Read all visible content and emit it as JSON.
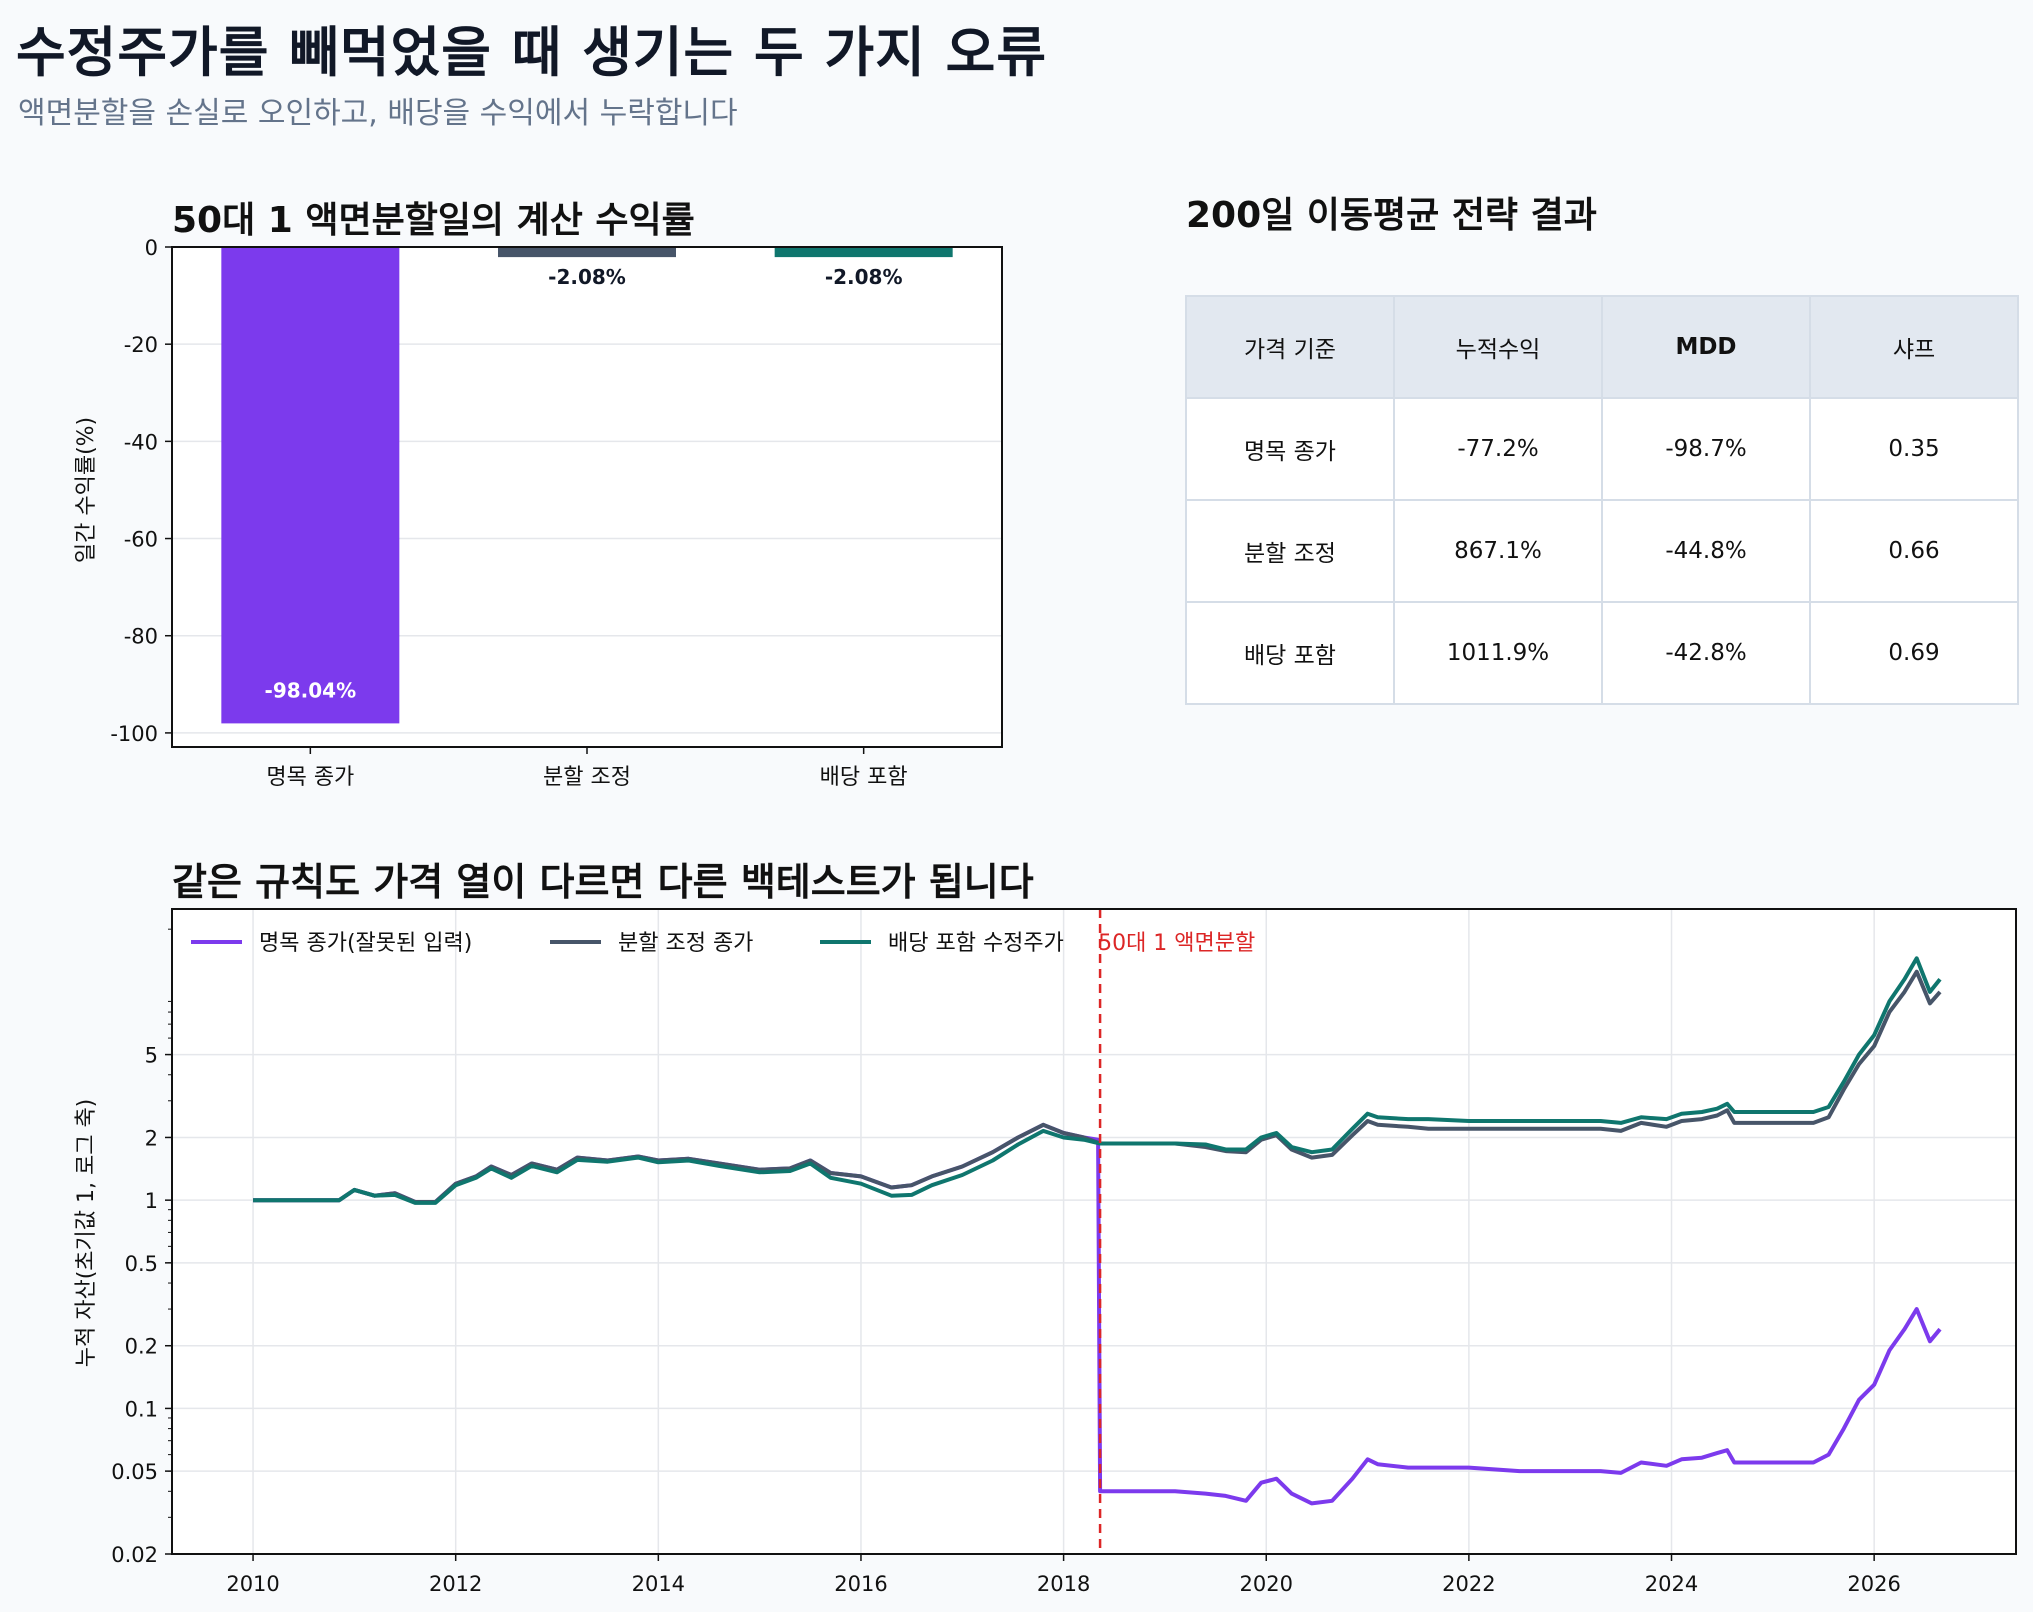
{
  "header": {
    "title": "수정주가를 빼먹었을 때 생기는 두 가지 오류",
    "subtitle": "액면분할을 손실로 오인하고, 배당을 수익에서 누락합니다"
  },
  "table": {
    "title": "200일 이동평균 전략 결과",
    "columns": [
      "가격 기준",
      "누적수익",
      "MDD",
      "샤프"
    ],
    "rows": [
      [
        "명목 종가",
        "-77.2%",
        "-98.7%",
        "0.35"
      ],
      [
        "분할 조정",
        "867.1%",
        "-44.8%",
        "0.66"
      ],
      [
        "배당 포함",
        "1011.9%",
        "-42.8%",
        "0.69"
      ]
    ]
  },
  "chart_data": [
    {
      "type": "bar",
      "title": "50대 1 액면분할일의 계산 수익률",
      "xlabel": "",
      "ylabel": "일간 수익률(%)",
      "categories": [
        "명목 종가",
        "분할 조정",
        "배당 포함"
      ],
      "values": [
        -98.04,
        -2.08,
        -2.08
      ],
      "value_labels": [
        "-98.04%",
        "-2.08%",
        "-2.08%"
      ],
      "colors": [
        "#7c3aed",
        "#475569",
        "#0f766e"
      ],
      "ylim": [
        -102.9,
        0
      ],
      "yticks": [
        0,
        -20,
        -40,
        -60,
        -80,
        -100
      ],
      "grid": true
    },
    {
      "type": "line",
      "title": "같은 규칙도 가격 열이 다르면 다른 백테스트가 됩니다",
      "xlabel": "",
      "ylabel": "누적 자산(초기값 1, 로그 축)",
      "y_scale": "log",
      "xlim": [
        2009.2,
        2027.4
      ],
      "ylim": [
        0.02,
        25
      ],
      "xticks": [
        2010,
        2012,
        2014,
        2016,
        2018,
        2020,
        2022,
        2024,
        2026
      ],
      "yticks": [
        0.02,
        0.05,
        0.1,
        0.2,
        0.5,
        1,
        2,
        5
      ],
      "grid": true,
      "legend_position": "top-left",
      "annotation": {
        "x": 2018.36,
        "label": "50대 1 액면분할",
        "color": "#dc2626"
      },
      "series": [
        {
          "name": "명목 종가(잘못된 입력)",
          "color": "#7c3aed",
          "points": [
            [
              2010.0,
              1.0
            ],
            [
              2010.85,
              1.0
            ],
            [
              2011.0,
              1.12
            ],
            [
              2011.2,
              1.05
            ],
            [
              2011.4,
              1.08
            ],
            [
              2011.6,
              0.98
            ],
            [
              2011.8,
              0.98
            ],
            [
              2012.0,
              1.2
            ],
            [
              2012.2,
              1.3
            ],
            [
              2012.35,
              1.45
            ],
            [
              2012.55,
              1.32
            ],
            [
              2012.75,
              1.5
            ],
            [
              2013.0,
              1.4
            ],
            [
              2013.2,
              1.6
            ],
            [
              2013.5,
              1.55
            ],
            [
              2013.8,
              1.62
            ],
            [
              2014.0,
              1.55
            ],
            [
              2014.3,
              1.58
            ],
            [
              2014.6,
              1.5
            ],
            [
              2015.0,
              1.4
            ],
            [
              2015.3,
              1.42
            ],
            [
              2015.5,
              1.55
            ],
            [
              2015.7,
              1.35
            ],
            [
              2016.0,
              1.3
            ],
            [
              2016.3,
              1.15
            ],
            [
              2016.5,
              1.18
            ],
            [
              2016.7,
              1.3
            ],
            [
              2017.0,
              1.45
            ],
            [
              2017.3,
              1.7
            ],
            [
              2017.55,
              2.0
            ],
            [
              2017.8,
              2.3
            ],
            [
              2018.0,
              2.1
            ],
            [
              2018.2,
              2.0
            ],
            [
              2018.34,
              1.95
            ],
            [
              2018.36,
              0.04
            ],
            [
              2019.1,
              0.04
            ],
            [
              2019.4,
              0.039
            ],
            [
              2019.6,
              0.038
            ],
            [
              2019.8,
              0.036
            ],
            [
              2019.95,
              0.044
            ],
            [
              2020.1,
              0.046
            ],
            [
              2020.25,
              0.039
            ],
            [
              2020.45,
              0.035
            ],
            [
              2020.65,
              0.036
            ],
            [
              2020.85,
              0.046
            ],
            [
              2021.0,
              0.057
            ],
            [
              2021.1,
              0.054
            ],
            [
              2021.4,
              0.052
            ],
            [
              2021.6,
              0.052
            ],
            [
              2022.0,
              0.052
            ],
            [
              2022.5,
              0.05
            ],
            [
              2023.0,
              0.05
            ],
            [
              2023.3,
              0.05
            ],
            [
              2023.5,
              0.049
            ],
            [
              2023.7,
              0.055
            ],
            [
              2023.95,
              0.053
            ],
            [
              2024.1,
              0.057
            ],
            [
              2024.3,
              0.058
            ],
            [
              2024.45,
              0.061
            ],
            [
              2024.55,
              0.063
            ],
            [
              2024.62,
              0.055
            ],
            [
              2025.0,
              0.055
            ],
            [
              2025.4,
              0.055
            ],
            [
              2025.55,
              0.06
            ],
            [
              2025.7,
              0.08
            ],
            [
              2025.85,
              0.11
            ],
            [
              2026.0,
              0.13
            ],
            [
              2026.15,
              0.19
            ],
            [
              2026.3,
              0.24
            ],
            [
              2026.42,
              0.3
            ],
            [
              2026.55,
              0.21
            ],
            [
              2026.65,
              0.24
            ]
          ]
        },
        {
          "name": "분할 조정 종가",
          "color": "#475569",
          "points": [
            [
              2010.0,
              1.0
            ],
            [
              2010.85,
              1.0
            ],
            [
              2011.0,
              1.12
            ],
            [
              2011.2,
              1.05
            ],
            [
              2011.4,
              1.08
            ],
            [
              2011.6,
              0.98
            ],
            [
              2011.8,
              0.98
            ],
            [
              2012.0,
              1.2
            ],
            [
              2012.2,
              1.3
            ],
            [
              2012.35,
              1.45
            ],
            [
              2012.55,
              1.32
            ],
            [
              2012.75,
              1.5
            ],
            [
              2013.0,
              1.4
            ],
            [
              2013.2,
              1.6
            ],
            [
              2013.5,
              1.55
            ],
            [
              2013.8,
              1.62
            ],
            [
              2014.0,
              1.55
            ],
            [
              2014.3,
              1.58
            ],
            [
              2014.6,
              1.5
            ],
            [
              2015.0,
              1.4
            ],
            [
              2015.3,
              1.42
            ],
            [
              2015.5,
              1.55
            ],
            [
              2015.7,
              1.35
            ],
            [
              2016.0,
              1.3
            ],
            [
              2016.3,
              1.15
            ],
            [
              2016.5,
              1.18
            ],
            [
              2016.7,
              1.3
            ],
            [
              2017.0,
              1.45
            ],
            [
              2017.3,
              1.7
            ],
            [
              2017.55,
              2.0
            ],
            [
              2017.8,
              2.3
            ],
            [
              2018.0,
              2.1
            ],
            [
              2018.2,
              2.0
            ],
            [
              2018.36,
              1.87
            ],
            [
              2019.1,
              1.87
            ],
            [
              2019.4,
              1.8
            ],
            [
              2019.6,
              1.72
            ],
            [
              2019.8,
              1.7
            ],
            [
              2019.95,
              1.95
            ],
            [
              2020.1,
              2.05
            ],
            [
              2020.25,
              1.75
            ],
            [
              2020.45,
              1.6
            ],
            [
              2020.65,
              1.65
            ],
            [
              2020.85,
              2.05
            ],
            [
              2021.0,
              2.4
            ],
            [
              2021.1,
              2.3
            ],
            [
              2021.4,
              2.25
            ],
            [
              2021.6,
              2.2
            ],
            [
              2022.0,
              2.2
            ],
            [
              2022.5,
              2.2
            ],
            [
              2023.0,
              2.2
            ],
            [
              2023.3,
              2.2
            ],
            [
              2023.5,
              2.15
            ],
            [
              2023.7,
              2.35
            ],
            [
              2023.95,
              2.25
            ],
            [
              2024.1,
              2.4
            ],
            [
              2024.3,
              2.45
            ],
            [
              2024.45,
              2.55
            ],
            [
              2024.55,
              2.7
            ],
            [
              2024.62,
              2.35
            ],
            [
              2025.0,
              2.35
            ],
            [
              2025.4,
              2.35
            ],
            [
              2025.55,
              2.5
            ],
            [
              2025.7,
              3.4
            ],
            [
              2025.85,
              4.5
            ],
            [
              2026.0,
              5.5
            ],
            [
              2026.15,
              8.0
            ],
            [
              2026.3,
              10.0
            ],
            [
              2026.42,
              12.5
            ],
            [
              2026.55,
              8.8
            ],
            [
              2026.65,
              10.0
            ]
          ]
        },
        {
          "name": "배당 포함 수정주가",
          "color": "#0f766e",
          "points": [
            [
              2010.0,
              1.0
            ],
            [
              2010.85,
              1.0
            ],
            [
              2011.0,
              1.12
            ],
            [
              2011.2,
              1.05
            ],
            [
              2011.4,
              1.06
            ],
            [
              2011.6,
              0.97
            ],
            [
              2011.8,
              0.97
            ],
            [
              2012.0,
              1.18
            ],
            [
              2012.2,
              1.28
            ],
            [
              2012.35,
              1.42
            ],
            [
              2012.55,
              1.28
            ],
            [
              2012.75,
              1.46
            ],
            [
              2013.0,
              1.36
            ],
            [
              2013.2,
              1.56
            ],
            [
              2013.5,
              1.53
            ],
            [
              2013.8,
              1.6
            ],
            [
              2014.0,
              1.52
            ],
            [
              2014.3,
              1.55
            ],
            [
              2014.6,
              1.46
            ],
            [
              2015.0,
              1.36
            ],
            [
              2015.3,
              1.38
            ],
            [
              2015.5,
              1.5
            ],
            [
              2015.7,
              1.28
            ],
            [
              2016.0,
              1.2
            ],
            [
              2016.3,
              1.05
            ],
            [
              2016.5,
              1.06
            ],
            [
              2016.7,
              1.18
            ],
            [
              2017.0,
              1.32
            ],
            [
              2017.3,
              1.55
            ],
            [
              2017.55,
              1.85
            ],
            [
              2017.8,
              2.15
            ],
            [
              2018.0,
              2.0
            ],
            [
              2018.2,
              1.95
            ],
            [
              2018.36,
              1.87
            ],
            [
              2019.1,
              1.87
            ],
            [
              2019.4,
              1.85
            ],
            [
              2019.6,
              1.75
            ],
            [
              2019.8,
              1.75
            ],
            [
              2019.95,
              2.0
            ],
            [
              2020.1,
              2.1
            ],
            [
              2020.25,
              1.8
            ],
            [
              2020.45,
              1.7
            ],
            [
              2020.65,
              1.75
            ],
            [
              2020.85,
              2.2
            ],
            [
              2021.0,
              2.6
            ],
            [
              2021.1,
              2.5
            ],
            [
              2021.4,
              2.45
            ],
            [
              2021.6,
              2.45
            ],
            [
              2022.0,
              2.4
            ],
            [
              2022.5,
              2.4
            ],
            [
              2023.0,
              2.4
            ],
            [
              2023.3,
              2.4
            ],
            [
              2023.5,
              2.35
            ],
            [
              2023.7,
              2.5
            ],
            [
              2023.95,
              2.45
            ],
            [
              2024.1,
              2.6
            ],
            [
              2024.3,
              2.65
            ],
            [
              2024.45,
              2.75
            ],
            [
              2024.55,
              2.9
            ],
            [
              2024.62,
              2.65
            ],
            [
              2025.0,
              2.65
            ],
            [
              2025.4,
              2.65
            ],
            [
              2025.55,
              2.8
            ],
            [
              2025.7,
              3.7
            ],
            [
              2025.85,
              5.0
            ],
            [
              2026.0,
              6.2
            ],
            [
              2026.15,
              9.0
            ],
            [
              2026.3,
              11.5
            ],
            [
              2026.42,
              14.5
            ],
            [
              2026.55,
              10.0
            ],
            [
              2026.65,
              11.5
            ]
          ]
        }
      ]
    }
  ]
}
